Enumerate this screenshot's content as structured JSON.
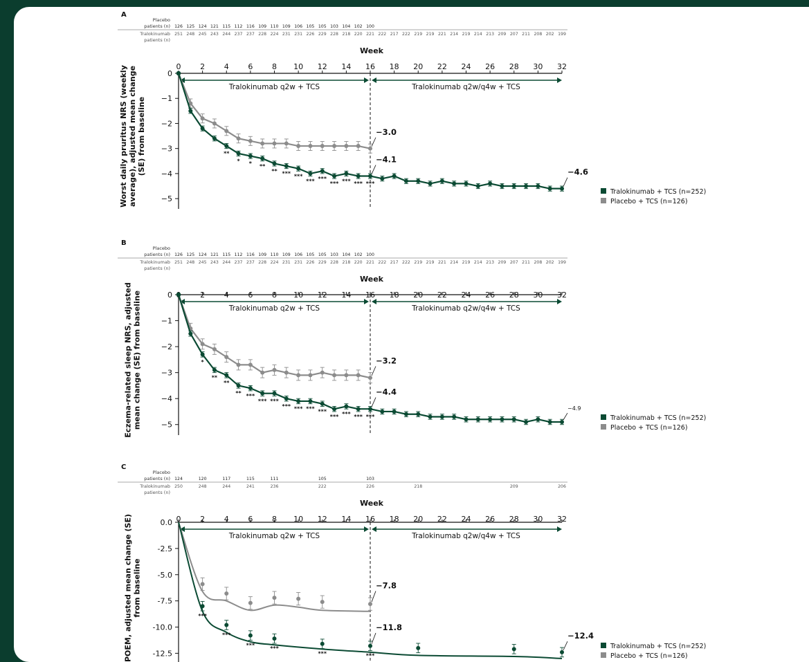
{
  "weeks_header": "Week",
  "arm_labels": {
    "left": "Tralokinumab q2w + TCS",
    "right": "Tralokinumab q2w/q4w + TCS"
  },
  "legend": [
    {
      "label": "Tralokinumab + TCS (n=252)",
      "color": "#0b4a33"
    },
    {
      "label": "Placebo + TCS (n=126)",
      "color": "#8c8c8c"
    }
  ],
  "colors": {
    "tralokinumab": "#0b4a33",
    "placebo": "#8c8c8c",
    "background": "#0b3d2e"
  },
  "chart_data": [
    {
      "panel": "A",
      "type": "line",
      "xlabel": "Week",
      "ylabel": "Worst daily pruritus NRS (weekly average), adjusted mean change (SE) from baseline",
      "ylim": [
        -5.3,
        0
      ],
      "yticks": [
        "0",
        "−1",
        "−2",
        "−3",
        "−4",
        "−5"
      ],
      "ytick_values": [
        0,
        -1,
        -2,
        -3,
        -4,
        -5
      ],
      "xticks": [
        0,
        2,
        4,
        6,
        8,
        10,
        12,
        14,
        16,
        18,
        20,
        22,
        24,
        26,
        28,
        30,
        32
      ],
      "placebo_n_label": "Placebo patients (n)",
      "tralo_n_label": "Tralokinumab patients (n)",
      "placebo_n": [
        "126",
        "125",
        "124",
        "121",
        "115",
        "112",
        "116",
        "109",
        "110",
        "109",
        "106",
        "105",
        "105",
        "103",
        "104",
        "102",
        "100"
      ],
      "tralo_n": [
        "251",
        "248",
        "245",
        "243",
        "244",
        "237",
        "237",
        "228",
        "224",
        "231",
        "231",
        "226",
        "229",
        "228",
        "218",
        "220",
        "221",
        "222",
        "217",
        "222",
        "219",
        "219",
        "221",
        "214",
        "219",
        "214",
        "213",
        "209",
        "207",
        "211",
        "208",
        "202",
        "199"
      ],
      "series": [
        {
          "name": "Tralokinumab + TCS (n=252)",
          "line": "connected",
          "x": [
            0,
            1,
            2,
            3,
            4,
            5,
            6,
            7,
            8,
            9,
            10,
            11,
            12,
            13,
            14,
            15,
            16,
            17,
            18,
            19,
            20,
            21,
            22,
            23,
            24,
            25,
            26,
            27,
            28,
            29,
            30,
            31,
            32
          ],
          "values": [
            0,
            -1.5,
            -2.2,
            -2.6,
            -2.9,
            -3.2,
            -3.3,
            -3.4,
            -3.6,
            -3.7,
            -3.8,
            -4.0,
            -3.9,
            -4.1,
            -4.0,
            -4.1,
            -4.1,
            -4.2,
            -4.1,
            -4.3,
            -4.3,
            -4.4,
            -4.3,
            -4.4,
            -4.4,
            -4.5,
            -4.4,
            -4.5,
            -4.5,
            -4.5,
            -4.5,
            -4.6,
            -4.6
          ],
          "se": 0.1
        },
        {
          "name": "Placebo + TCS (n=126)",
          "line": "connected",
          "x": [
            0,
            1,
            2,
            3,
            4,
            5,
            6,
            7,
            8,
            9,
            10,
            11,
            12,
            13,
            14,
            15,
            16
          ],
          "values": [
            0,
            -1.2,
            -1.8,
            -2.0,
            -2.3,
            -2.6,
            -2.7,
            -2.8,
            -2.8,
            -2.8,
            -2.9,
            -2.9,
            -2.9,
            -2.9,
            -2.9,
            -2.9,
            -3.0
          ],
          "se": 0.18
        }
      ],
      "significance": [
        {
          "x": 4,
          "label": "**"
        },
        {
          "x": 5,
          "label": "*"
        },
        {
          "x": 6,
          "label": "*"
        },
        {
          "x": 7,
          "label": "**"
        },
        {
          "x": 8,
          "label": "**"
        },
        {
          "x": 9,
          "label": "***"
        },
        {
          "x": 10,
          "label": "***"
        },
        {
          "x": 11,
          "label": "***"
        },
        {
          "x": 12,
          "label": "***"
        },
        {
          "x": 13,
          "label": "***"
        },
        {
          "x": 14,
          "label": "***"
        },
        {
          "x": 15,
          "label": "***"
        },
        {
          "x": 16,
          "label": "***"
        }
      ],
      "annotations": [
        {
          "text": "−3.0",
          "x": 16,
          "y": -3.0,
          "ly": -2.45,
          "bold": true
        },
        {
          "text": "−4.1",
          "x": 16,
          "y": -4.1,
          "ly": -3.55,
          "bold": true
        },
        {
          "text": "−4.6",
          "x": 32,
          "y": -4.6,
          "ly": -4.05,
          "bold": true
        }
      ]
    },
    {
      "panel": "B",
      "type": "line",
      "xlabel": "Week",
      "ylabel": "Eczema-related sleep NRS, adjusted mean change (SE) from baseline",
      "ylim": [
        -5.3,
        0
      ],
      "yticks": [
        "0",
        "−1",
        "−2",
        "−3",
        "−4",
        "−5"
      ],
      "ytick_values": [
        0,
        -1,
        -2,
        -3,
        -4,
        -5
      ],
      "xticks": [
        0,
        2,
        4,
        6,
        8,
        10,
        12,
        14,
        16,
        18,
        20,
        22,
        24,
        26,
        28,
        30,
        32
      ],
      "placebo_n_label": "Placebo patients (n)",
      "tralo_n_label": "Tralokinumab patients (n)",
      "placebo_n": [
        "126",
        "125",
        "124",
        "121",
        "115",
        "112",
        "116",
        "109",
        "110",
        "109",
        "106",
        "105",
        "105",
        "103",
        "104",
        "102",
        "100"
      ],
      "tralo_n": [
        "251",
        "248",
        "245",
        "243",
        "244",
        "237",
        "237",
        "228",
        "224",
        "231",
        "231",
        "226",
        "229",
        "228",
        "218",
        "220",
        "221",
        "222",
        "217",
        "222",
        "219",
        "219",
        "221",
        "214",
        "219",
        "214",
        "213",
        "209",
        "207",
        "211",
        "208",
        "202",
        "199"
      ],
      "series": [
        {
          "name": "Tralokinumab + TCS (n=252)",
          "line": "connected",
          "x": [
            0,
            1,
            2,
            3,
            4,
            5,
            6,
            7,
            8,
            9,
            10,
            11,
            12,
            13,
            14,
            15,
            16,
            17,
            18,
            19,
            20,
            21,
            22,
            23,
            24,
            25,
            26,
            27,
            28,
            29,
            30,
            31,
            32
          ],
          "values": [
            0,
            -1.5,
            -2.3,
            -2.9,
            -3.1,
            -3.5,
            -3.6,
            -3.8,
            -3.8,
            -4.0,
            -4.1,
            -4.1,
            -4.2,
            -4.4,
            -4.3,
            -4.4,
            -4.4,
            -4.5,
            -4.5,
            -4.6,
            -4.6,
            -4.7,
            -4.7,
            -4.7,
            -4.8,
            -4.8,
            -4.8,
            -4.8,
            -4.8,
            -4.9,
            -4.8,
            -4.9,
            -4.9
          ],
          "se": 0.1
        },
        {
          "name": "Placebo + TCS (n=126)",
          "line": "connected",
          "x": [
            0,
            1,
            2,
            3,
            4,
            5,
            6,
            7,
            8,
            9,
            10,
            11,
            12,
            13,
            14,
            15,
            16
          ],
          "values": [
            0,
            -1.3,
            -1.9,
            -2.1,
            -2.4,
            -2.7,
            -2.7,
            -3.0,
            -2.9,
            -3.0,
            -3.1,
            -3.1,
            -3.0,
            -3.1,
            -3.1,
            -3.1,
            -3.2
          ],
          "se": 0.2
        }
      ],
      "significance": [
        {
          "x": 2,
          "label": "*"
        },
        {
          "x": 3,
          "label": "**"
        },
        {
          "x": 4,
          "label": "**"
        },
        {
          "x": 5,
          "label": "**"
        },
        {
          "x": 6,
          "label": "***"
        },
        {
          "x": 7,
          "label": "***"
        },
        {
          "x": 8,
          "label": "***"
        },
        {
          "x": 9,
          "label": "***"
        },
        {
          "x": 10,
          "label": "***"
        },
        {
          "x": 11,
          "label": "***"
        },
        {
          "x": 12,
          "label": "***"
        },
        {
          "x": 13,
          "label": "***"
        },
        {
          "x": 14,
          "label": "***"
        },
        {
          "x": 15,
          "label": "***"
        },
        {
          "x": 16,
          "label": "***"
        }
      ],
      "annotations": [
        {
          "text": "−3.2",
          "x": 16,
          "y": -3.2,
          "ly": -2.65,
          "bold": true
        },
        {
          "text": "−4.4",
          "x": 16,
          "y": -4.4,
          "ly": -3.85,
          "bold": true
        },
        {
          "text": "−4.9",
          "x": 32,
          "y": -4.9,
          "ly": -4.45,
          "bold": false
        }
      ]
    },
    {
      "panel": "C",
      "type": "line",
      "xlabel": "Week",
      "ylabel": "POEM, adjusted mean change (SE) from baseline",
      "ylim": [
        -13.2,
        0
      ],
      "yticks": [
        "0.0",
        "-2.5",
        "-5.0",
        "-7.5",
        "-10.0",
        "-12.5"
      ],
      "ytick_values": [
        0,
        -2.5,
        -5.0,
        -7.5,
        -10.0,
        -12.5
      ],
      "xticks": [
        0,
        2,
        4,
        6,
        8,
        10,
        12,
        14,
        16,
        18,
        20,
        22,
        24,
        26,
        28,
        30,
        32
      ],
      "placebo_n_label": "Placebo patients (n)",
      "tralo_n_label": "Tralokinumab patients (n)",
      "placebo_n_x": [
        0,
        2,
        4,
        6,
        8,
        12,
        16
      ],
      "placebo_n": [
        "124",
        "120",
        "117",
        "115",
        "111",
        "105",
        "103"
      ],
      "tralo_n_x": [
        0,
        2,
        4,
        6,
        8,
        12,
        16,
        20,
        28,
        32
      ],
      "tralo_n": [
        "250",
        "248",
        "244",
        "241",
        "236",
        "222",
        "226",
        "218",
        "209",
        "206"
      ],
      "series": [
        {
          "name": "Tralokinumab + TCS (n=252)",
          "line": "smooth",
          "x": [
            0,
            2,
            4,
            6,
            8,
            12,
            16,
            20,
            28,
            32
          ],
          "values": [
            0,
            -8.5,
            -10.5,
            -11.4,
            -11.7,
            -12.1,
            -12.4,
            -12.7,
            -12.8,
            -13.0
          ],
          "points_x": [
            2,
            4,
            6,
            8,
            12,
            16,
            20,
            28,
            32
          ],
          "points": [
            -8.0,
            -9.8,
            -10.8,
            -11.1,
            -11.6,
            -11.8,
            -12.0,
            -12.1,
            -12.4
          ],
          "se": 0.45
        },
        {
          "name": "Placebo + TCS (n=126)",
          "line": "smooth",
          "x": [
            0,
            2,
            4,
            6,
            8,
            10,
            12,
            16
          ],
          "values": [
            0,
            -6.6,
            -7.5,
            -8.4,
            -7.9,
            -8.1,
            -8.4,
            -8.5
          ],
          "points_x": [
            2,
            4,
            6,
            8,
            10,
            12,
            16
          ],
          "points": [
            -5.9,
            -6.8,
            -7.7,
            -7.2,
            -7.3,
            -7.6,
            -7.8
          ],
          "se": 0.6
        }
      ],
      "significance": [
        {
          "x": 2,
          "label": "***"
        },
        {
          "x": 4,
          "label": "***"
        },
        {
          "x": 6,
          "label": "***"
        },
        {
          "x": 8,
          "label": "***"
        },
        {
          "x": 12,
          "label": "***"
        },
        {
          "x": 16,
          "label": "***"
        }
      ],
      "annotations": [
        {
          "text": "−7.8",
          "x": 16,
          "y": -7.8,
          "ly": -6.3,
          "bold": true
        },
        {
          "text": "−11.8",
          "x": 16,
          "y": -11.8,
          "ly": -10.3,
          "bold": true
        },
        {
          "text": "−12.4",
          "x": 32,
          "y": -12.4,
          "ly": -11.1,
          "bold": true
        }
      ]
    }
  ]
}
